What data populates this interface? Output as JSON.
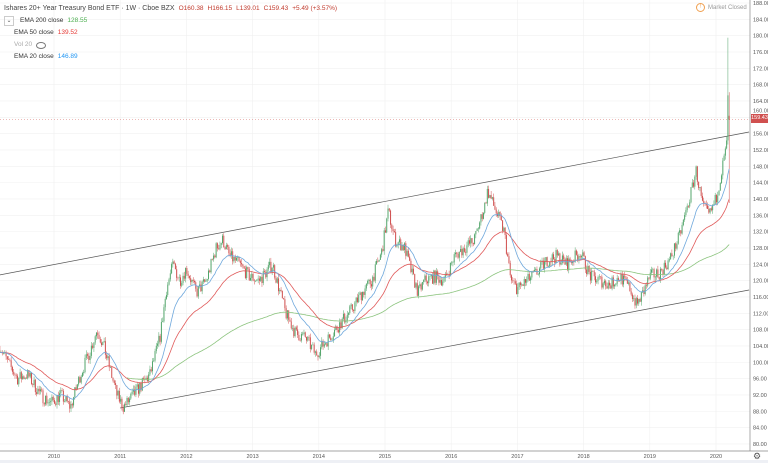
{
  "header": {
    "symbol_title": "Ishares 20+ Year Treasury Bond ETF · 1W · Cboe BZX",
    "open": "O160.38",
    "high": "H166.15",
    "low": "L139.01",
    "close": "C159.43",
    "change": "+5.49 (+3.57%)",
    "market_status": "Market Closed"
  },
  "indicators": [
    {
      "label": "EMA 200 close",
      "value": "128.55",
      "color": "#4caf50"
    },
    {
      "label": "EMA 50 close",
      "value": "139.52",
      "color": "#e53935"
    },
    {
      "label": "Vol 20",
      "value": ""
    },
    {
      "label": "EMA 20 close",
      "value": "146.89",
      "color": "#2196f3"
    }
  ],
  "last_price_label": "159.43",
  "chart_data": {
    "type": "candlestick",
    "interval": "1W",
    "x_ticks": [
      "2010",
      "2011",
      "2012",
      "2013",
      "2014",
      "2015",
      "2016",
      "2017",
      "2018",
      "2019",
      "2020"
    ],
    "y_ticks": [
      "188.00",
      "184.00",
      "180.00",
      "176.00",
      "172.00",
      "168.00",
      "164.00",
      "160.00",
      "156.00",
      "152.00",
      "148.00",
      "144.00",
      "140.00",
      "136.00",
      "132.00",
      "128.00",
      "124.00",
      "120.00",
      "116.00",
      "112.00",
      "108.00",
      "104.00",
      "100.00",
      "96.00",
      "92.00",
      "88.00",
      "84.00",
      "80.00"
    ],
    "ylim": [
      80,
      188
    ],
    "xlim": [
      2009.18,
      2020.5
    ],
    "grid": true,
    "approx_closes": [
      [
        2009.18,
        104
      ],
      [
        2009.3,
        100
      ],
      [
        2009.45,
        96
      ],
      [
        2009.6,
        97
      ],
      [
        2009.8,
        92
      ],
      [
        2009.95,
        90
      ],
      [
        2010.1,
        92
      ],
      [
        2010.25,
        89
      ],
      [
        2010.4,
        97
      ],
      [
        2010.55,
        103
      ],
      [
        2010.65,
        108
      ],
      [
        2010.75,
        104
      ],
      [
        2010.85,
        98
      ],
      [
        2010.95,
        92
      ],
      [
        2011.05,
        89
      ],
      [
        2011.15,
        91
      ],
      [
        2011.3,
        94
      ],
      [
        2011.45,
        97
      ],
      [
        2011.6,
        106
      ],
      [
        2011.7,
        118
      ],
      [
        2011.8,
        124
      ],
      [
        2011.9,
        120
      ],
      [
        2012.0,
        123
      ],
      [
        2012.15,
        117
      ],
      [
        2012.3,
        120
      ],
      [
        2012.45,
        128
      ],
      [
        2012.55,
        130
      ],
      [
        2012.65,
        126
      ],
      [
        2012.8,
        124
      ],
      [
        2012.95,
        121
      ],
      [
        2013.1,
        120
      ],
      [
        2013.3,
        124
      ],
      [
        2013.4,
        118
      ],
      [
        2013.5,
        112
      ],
      [
        2013.65,
        107
      ],
      [
        2013.8,
        106
      ],
      [
        2013.95,
        102
      ],
      [
        2014.05,
        104
      ],
      [
        2014.2,
        107
      ],
      [
        2014.35,
        110
      ],
      [
        2014.5,
        113
      ],
      [
        2014.65,
        117
      ],
      [
        2014.8,
        120
      ],
      [
        2014.95,
        127
      ],
      [
        2015.05,
        137
      ],
      [
        2015.15,
        130
      ],
      [
        2015.3,
        128
      ],
      [
        2015.4,
        122
      ],
      [
        2015.5,
        117
      ],
      [
        2015.6,
        120
      ],
      [
        2015.75,
        121
      ],
      [
        2015.9,
        120
      ],
      [
        2016.05,
        126
      ],
      [
        2016.2,
        128
      ],
      [
        2016.35,
        130
      ],
      [
        2016.5,
        138
      ],
      [
        2016.55,
        142
      ],
      [
        2016.65,
        138
      ],
      [
        2016.8,
        132
      ],
      [
        2016.9,
        120
      ],
      [
        2017.0,
        118
      ],
      [
        2017.15,
        120
      ],
      [
        2017.3,
        122
      ],
      [
        2017.45,
        125
      ],
      [
        2017.6,
        126
      ],
      [
        2017.75,
        124
      ],
      [
        2017.95,
        127
      ],
      [
        2018.1,
        121
      ],
      [
        2018.25,
        120
      ],
      [
        2018.4,
        119
      ],
      [
        2018.55,
        121
      ],
      [
        2018.7,
        118
      ],
      [
        2018.8,
        114
      ],
      [
        2018.9,
        117
      ],
      [
        2019.0,
        121
      ],
      [
        2019.15,
        122
      ],
      [
        2019.3,
        125
      ],
      [
        2019.45,
        131
      ],
      [
        2019.6,
        140
      ],
      [
        2019.7,
        147
      ],
      [
        2019.8,
        138
      ],
      [
        2019.9,
        136
      ],
      [
        2020.0,
        140
      ],
      [
        2020.1,
        148
      ],
      [
        2020.17,
        154
      ]
    ],
    "last_bar": {
      "open": 160.38,
      "high": 166.15,
      "low": 139.01,
      "close": 159.43
    },
    "spike_high": 179.5,
    "trendlines": [
      {
        "from": [
          2009.18,
          121.4
        ],
        "to": [
          2020.5,
          156.4
        ]
      },
      {
        "from": [
          2011.0,
          88.8
        ],
        "to": [
          2020.5,
          117.7
        ]
      }
    ],
    "colors": {
      "up": "#53a56b",
      "down": "#d0504f",
      "ema200": "#8cc47e",
      "ema50": "#e05a5a",
      "ema20": "#6fa8dc",
      "trend": "#555555"
    }
  }
}
